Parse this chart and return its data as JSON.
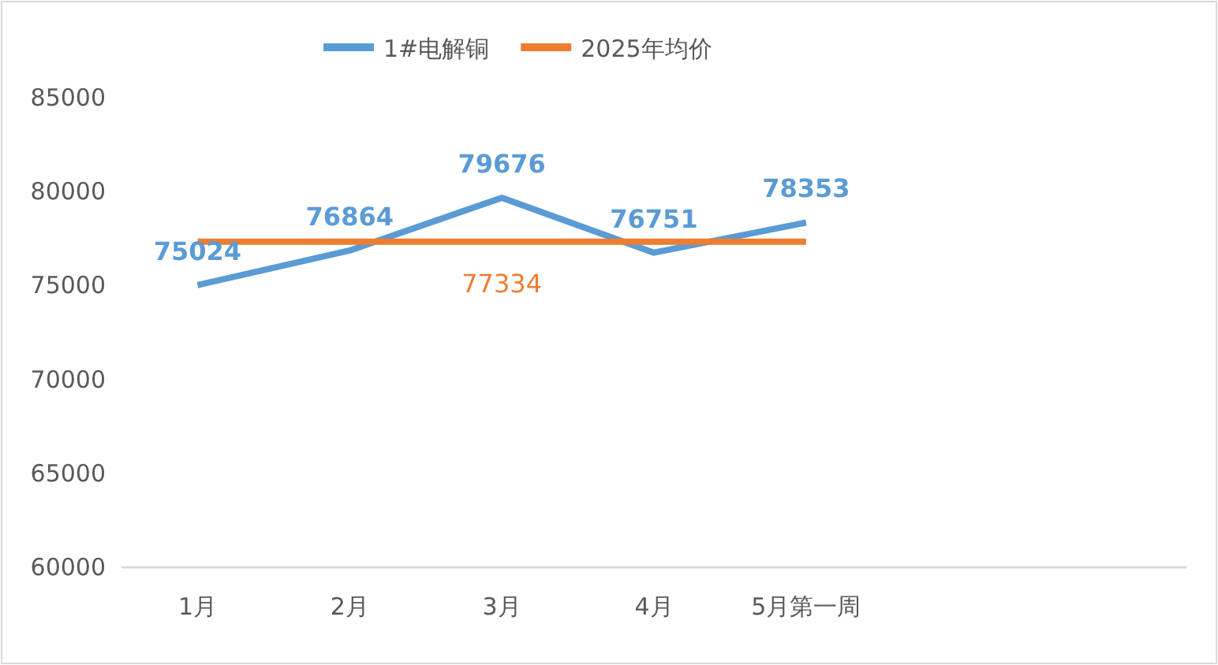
{
  "chart_data": {
    "type": "line",
    "categories": [
      "1月",
      "2月",
      "3月",
      "4月",
      "5月第一周",
      null,
      null
    ],
    "series": [
      {
        "name": "1#电解铜",
        "color": "#5b9bd5",
        "values": [
          75024,
          76864,
          79676,
          76751,
          78353,
          null,
          null
        ],
        "value_labels": [
          "75024",
          "76864",
          "79676",
          "76751",
          "78353",
          null,
          null
        ]
      },
      {
        "name": "2025年均价",
        "color": "#ed7d31",
        "values": [
          77334,
          77334,
          77334,
          77334,
          77334,
          null,
          null
        ],
        "value_labels": [
          null,
          null,
          "77334",
          null,
          null,
          null,
          null
        ]
      }
    ],
    "ylim": [
      60000,
      85000
    ],
    "yticks": [
      60000,
      65000,
      70000,
      75000,
      80000,
      85000
    ],
    "legend": "top",
    "marker": "none",
    "line_style": "solid",
    "grid": false
  }
}
